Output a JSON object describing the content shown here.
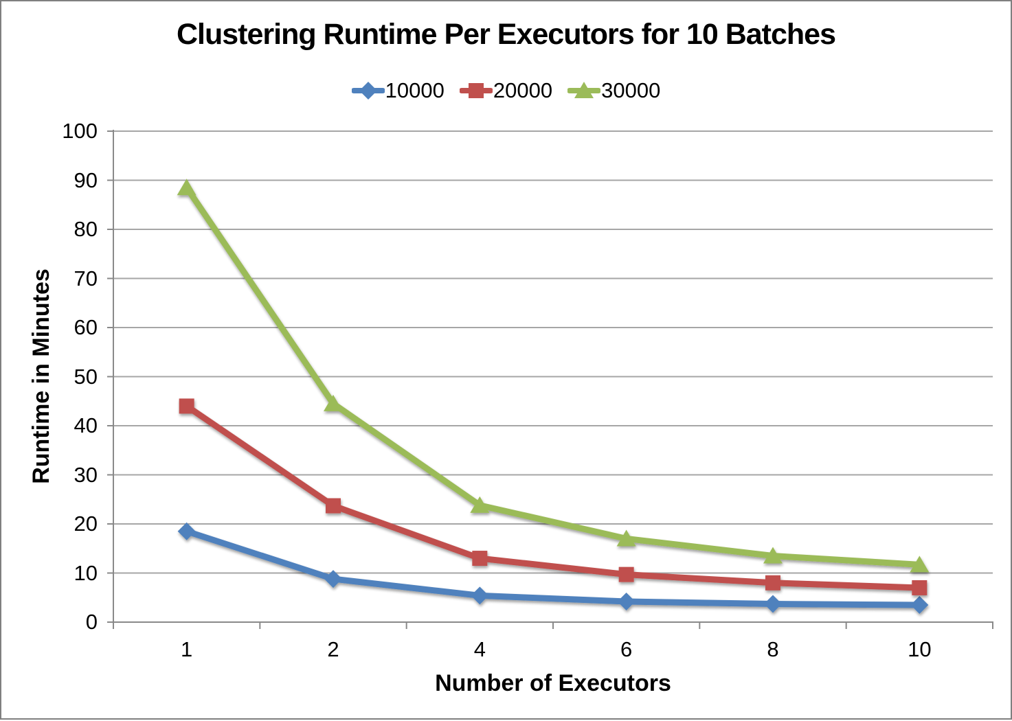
{
  "chart_data": {
    "type": "line",
    "title": "Clustering Runtime Per Executors for 10 Batches",
    "xlabel": "Number of Executors",
    "ylabel": "Runtime in Minutes",
    "categories": [
      "1",
      "2",
      "4",
      "6",
      "8",
      "10"
    ],
    "y_tick_labels": [
      "0",
      "10",
      "20",
      "30",
      "40",
      "50",
      "60",
      "70",
      "80",
      "90",
      "100"
    ],
    "ylim": [
      0,
      100
    ],
    "ytick_step": 10,
    "grid": "horizontal gridlines on",
    "legend_position": "top-center",
    "series": [
      {
        "name": "10000",
        "marker": "diamond",
        "color": "#4F81BD",
        "values": [
          18.5,
          8.8,
          5.4,
          4.2,
          3.7,
          3.5
        ]
      },
      {
        "name": "20000",
        "marker": "square",
        "color": "#C0504D",
        "values": [
          44,
          23.7,
          13,
          9.7,
          8,
          7
        ]
      },
      {
        "name": "30000",
        "marker": "triangle",
        "color": "#9BBB59",
        "values": [
          88.5,
          44.5,
          23.8,
          17,
          13.5,
          11.7
        ]
      }
    ],
    "colors": {
      "background": "#FFFFFF",
      "gridline": "#A6A6A6",
      "axis": "#898989",
      "border": "#7F7F7F",
      "text": "#000000"
    }
  }
}
